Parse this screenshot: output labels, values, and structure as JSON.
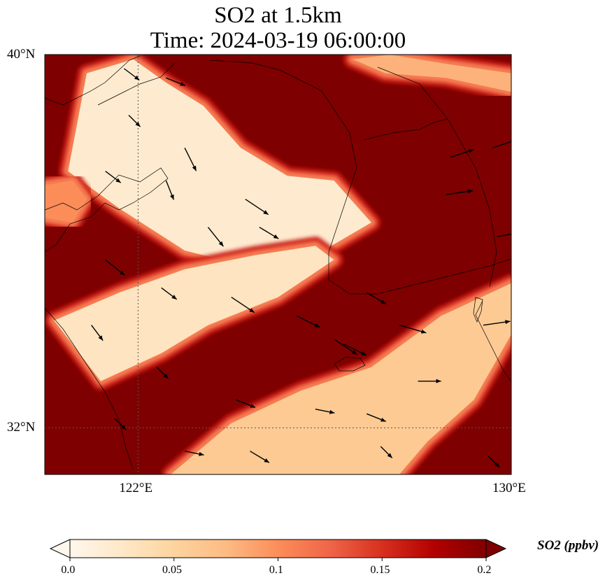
{
  "title": {
    "line1": "SO2 at 1.5km",
    "line2": "Time: 2024-03-19 06:00:00"
  },
  "map": {
    "extent": {
      "lon": [
        120,
        130
      ],
      "lat": [
        31,
        40
      ]
    },
    "lat_ticks": [
      {
        "value": 40,
        "label": "40°N"
      },
      {
        "value": 32,
        "label": "32°N"
      }
    ],
    "lon_ticks": [
      {
        "value": 122,
        "label": "122°E"
      },
      {
        "value": 130,
        "label": "130°E"
      }
    ],
    "gridlines": [
      {
        "axis": "lon",
        "value": 122
      },
      {
        "axis": "lat",
        "value": 32
      }
    ]
  },
  "colorbar": {
    "label": "SO2 (ppbv)",
    "colormap": "OrRd",
    "range": [
      0.0,
      0.2
    ],
    "extend": "both",
    "ticks": [
      {
        "value": 0.0,
        "label": "0.0"
      },
      {
        "value": 0.05,
        "label": "0.05"
      },
      {
        "value": 0.1,
        "label": "0.1"
      },
      {
        "value": 0.15,
        "label": "0.15"
      },
      {
        "value": 0.2,
        "label": "0.2"
      }
    ]
  },
  "colors": {
    "background_high": "#7f0000",
    "ramp": [
      "#fff7ec",
      "#fee8c8",
      "#fdd49e",
      "#fdbb84",
      "#fc8d59",
      "#ef6548",
      "#d7301f",
      "#b30000",
      "#7f0000"
    ],
    "coastline": "#000000",
    "wind_arrow": "#000000"
  },
  "plumes": [
    {
      "name": "northwest plume",
      "level": 0.02,
      "outline_lonlat": [
        [
          120.9,
          39.6
        ],
        [
          121.9,
          39.9
        ],
        [
          122.6,
          39.4
        ],
        [
          123.4,
          38.9
        ],
        [
          124.2,
          38.0
        ],
        [
          125.2,
          37.4
        ],
        [
          126.2,
          37.3
        ],
        [
          127.0,
          36.4
        ],
        [
          125.8,
          35.7
        ],
        [
          124.6,
          35.4
        ],
        [
          123.0,
          35.8
        ],
        [
          121.6,
          36.7
        ],
        [
          120.5,
          37.5
        ],
        [
          120.9,
          39.6
        ]
      ]
    },
    {
      "name": "middle plume",
      "level": 0.03,
      "outline_lonlat": [
        [
          120.2,
          34.3
        ],
        [
          121.6,
          34.9
        ],
        [
          123.0,
          35.4
        ],
        [
          124.5,
          35.7
        ],
        [
          125.8,
          35.9
        ],
        [
          126.2,
          35.6
        ],
        [
          125.0,
          34.8
        ],
        [
          123.5,
          34.2
        ],
        [
          122.5,
          33.6
        ],
        [
          121.2,
          33.0
        ],
        [
          120.2,
          34.3
        ]
      ]
    },
    {
      "name": "southeast plume",
      "level": 0.06,
      "outline_lonlat": [
        [
          122.7,
          31.0
        ],
        [
          124.0,
          32.1
        ],
        [
          125.5,
          32.8
        ],
        [
          127.0,
          33.3
        ],
        [
          128.5,
          34.4
        ],
        [
          130.0,
          35.1
        ],
        [
          130.0,
          34.0
        ],
        [
          129.2,
          32.6
        ],
        [
          128.2,
          31.7
        ],
        [
          127.6,
          31.0
        ],
        [
          122.7,
          31.0
        ]
      ]
    },
    {
      "name": "northeast strip",
      "level": 0.08,
      "outline_lonlat": [
        [
          126.6,
          39.9
        ],
        [
          127.4,
          40.0
        ],
        [
          128.6,
          39.8
        ],
        [
          130.0,
          39.6
        ],
        [
          130.0,
          39.2
        ],
        [
          128.6,
          39.5
        ],
        [
          127.3,
          39.6
        ],
        [
          126.6,
          39.9
        ]
      ]
    },
    {
      "name": "west edge patch",
      "level": 0.1,
      "outline_lonlat": [
        [
          120.0,
          37.2
        ],
        [
          120.6,
          37.3
        ],
        [
          120.9,
          36.9
        ],
        [
          120.6,
          36.4
        ],
        [
          120.0,
          36.5
        ],
        [
          120.0,
          37.2
        ]
      ]
    }
  ],
  "wind_vectors": [
    {
      "lon": 121.7,
      "lat": 39.7,
      "u": 0.4,
      "v": -0.3
    },
    {
      "lon": 122.6,
      "lat": 39.5,
      "u": 0.5,
      "v": -0.2
    },
    {
      "lon": 121.8,
      "lat": 38.7,
      "u": 0.3,
      "v": -0.3
    },
    {
      "lon": 123.0,
      "lat": 38.0,
      "u": 0.3,
      "v": -0.6
    },
    {
      "lon": 121.3,
      "lat": 37.5,
      "u": 0.4,
      "v": -0.3
    },
    {
      "lon": 122.6,
      "lat": 37.3,
      "u": 0.2,
      "v": -0.5
    },
    {
      "lon": 124.3,
      "lat": 36.9,
      "u": 0.6,
      "v": -0.4
    },
    {
      "lon": 123.5,
      "lat": 36.3,
      "u": 0.4,
      "v": -0.5
    },
    {
      "lon": 124.6,
      "lat": 36.3,
      "u": 0.5,
      "v": -0.3
    },
    {
      "lon": 121.3,
      "lat": 35.6,
      "u": 0.5,
      "v": -0.4
    },
    {
      "lon": 122.5,
      "lat": 35.0,
      "u": 0.4,
      "v": -0.3
    },
    {
      "lon": 124.0,
      "lat": 34.8,
      "u": 0.6,
      "v": -0.4
    },
    {
      "lon": 121.0,
      "lat": 34.2,
      "u": 0.3,
      "v": -0.4
    },
    {
      "lon": 122.4,
      "lat": 33.3,
      "u": 0.3,
      "v": -0.3
    },
    {
      "lon": 125.4,
      "lat": 34.4,
      "u": 0.6,
      "v": -0.3
    },
    {
      "lon": 126.9,
      "lat": 34.9,
      "u": 0.5,
      "v": -0.3
    },
    {
      "lon": 127.6,
      "lat": 34.2,
      "u": 0.7,
      "v": -0.2
    },
    {
      "lon": 126.4,
      "lat": 33.8,
      "u": 0.6,
      "v": -0.3
    },
    {
      "lon": 128.0,
      "lat": 33.0,
      "u": 0.6,
      "v": 0.0
    },
    {
      "lon": 129.4,
      "lat": 34.2,
      "u": 0.7,
      "v": 0.1
    },
    {
      "lon": 128.6,
      "lat": 37.0,
      "u": 0.7,
      "v": 0.1
    },
    {
      "lon": 129.7,
      "lat": 36.1,
      "u": 0.6,
      "v": 0.1
    },
    {
      "lon": 128.7,
      "lat": 37.8,
      "u": 0.6,
      "v": 0.2
    },
    {
      "lon": 129.6,
      "lat": 38.0,
      "u": 0.6,
      "v": 0.2
    },
    {
      "lon": 126.2,
      "lat": 33.9,
      "u": 0.6,
      "v": -0.4
    },
    {
      "lon": 124.1,
      "lat": 32.6,
      "u": 0.5,
      "v": -0.2
    },
    {
      "lon": 125.8,
      "lat": 32.4,
      "u": 0.5,
      "v": -0.1
    },
    {
      "lon": 126.9,
      "lat": 32.3,
      "u": 0.5,
      "v": -0.2
    },
    {
      "lon": 127.2,
      "lat": 31.6,
      "u": 0.3,
      "v": -0.3
    },
    {
      "lon": 124.4,
      "lat": 31.5,
      "u": 0.5,
      "v": -0.3
    },
    {
      "lon": 123.0,
      "lat": 31.5,
      "u": 0.5,
      "v": -0.1
    },
    {
      "lon": 121.5,
      "lat": 32.2,
      "u": 0.3,
      "v": -0.3
    },
    {
      "lon": 120.4,
      "lat": 31.0,
      "u": 0.3,
      "v": -0.3
    },
    {
      "lon": 129.5,
      "lat": 31.4,
      "u": 0.3,
      "v": -0.3
    }
  ]
}
